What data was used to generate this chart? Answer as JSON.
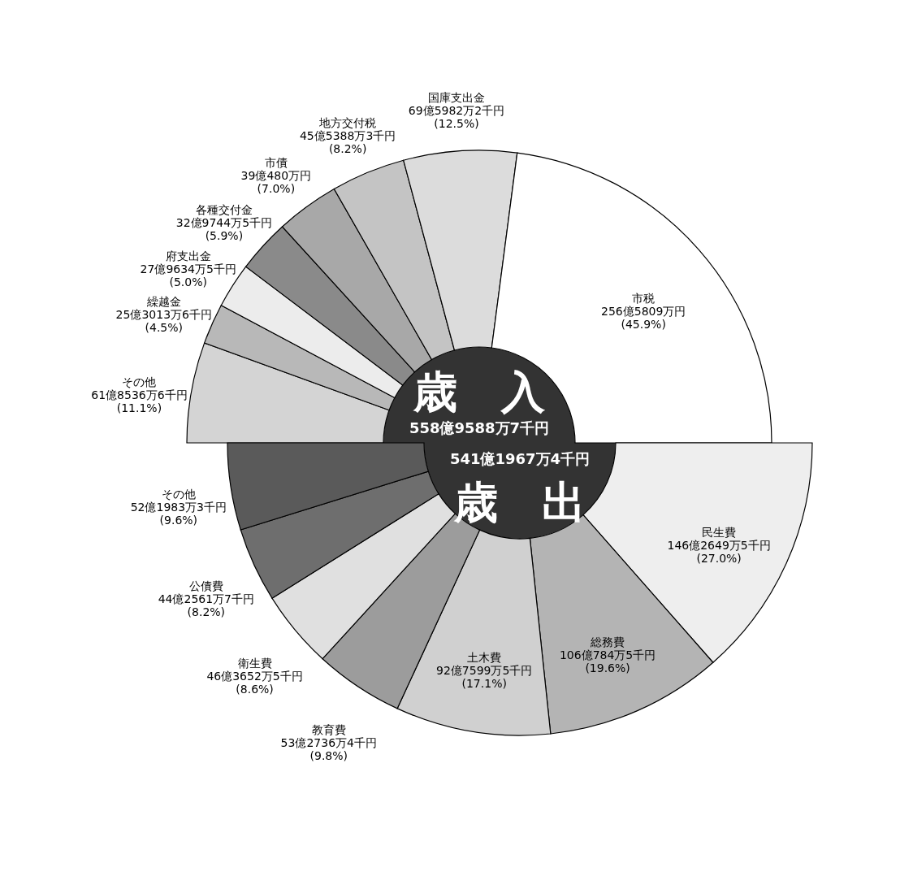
{
  "chart_data": [
    {
      "type": "donut",
      "categories": [
        "その他",
        "繰越金",
        "府支出金",
        "各種交付金",
        "市債",
        "地方交付税",
        "国庫支出金",
        "市税"
      ],
      "values": [
        11.1,
        4.5,
        5.0,
        5.9,
        7.0,
        8.2,
        12.5,
        45.9
      ],
      "value_labels": [
        "61億8536万6千円\n(11.1%)",
        "25億3013万6千円\n(4.5%)",
        "27億9634万5千円\n(5.0%)",
        "32億9744万5千円\n(5.9%)",
        "39億480万円\n(7.0%)",
        "45億5388万3千円\n(8.2%)",
        "69億5982万2千円\n(12.5%)",
        "256億5809万円\n(45.9%)"
      ],
      "colors": [
        "#d4d4d4",
        "#b8b8b8",
        "#ececec",
        "#8a8a8a",
        "#a8a8a8",
        "#c4c4c4",
        "#dcdcdc",
        "#ffffff"
      ],
      "annotations": [
        "歳　入",
        "558億9588万7千円"
      ]
    },
    {
      "type": "donut",
      "categories": [
        "民生費",
        "総務費",
        "土木費",
        "教育費",
        "衛生費",
        "公債費",
        "その他"
      ],
      "values": [
        27.0,
        19.6,
        17.1,
        9.8,
        8.6,
        8.2,
        9.6
      ],
      "value_labels": [
        "146億2649万5千円\n(27.0%)",
        "106億784万5千円\n(19.6%)",
        "92億7599万5千円\n(17.1%)",
        "53億2736万4千円\n(9.8%)",
        "46億3652万5千円\n(8.6%)",
        "44億2561万7千円\n(8.2%)",
        "52億1983万3千円\n(9.6%)"
      ],
      "colors": [
        "#eeeeee",
        "#b4b4b4",
        "#d0d0d0",
        "#9c9c9c",
        "#e0e0e0",
        "#6e6e6e",
        "#5a5a5a"
      ],
      "annotations": [
        "541億1967万4千円",
        "歳　出"
      ]
    }
  ]
}
